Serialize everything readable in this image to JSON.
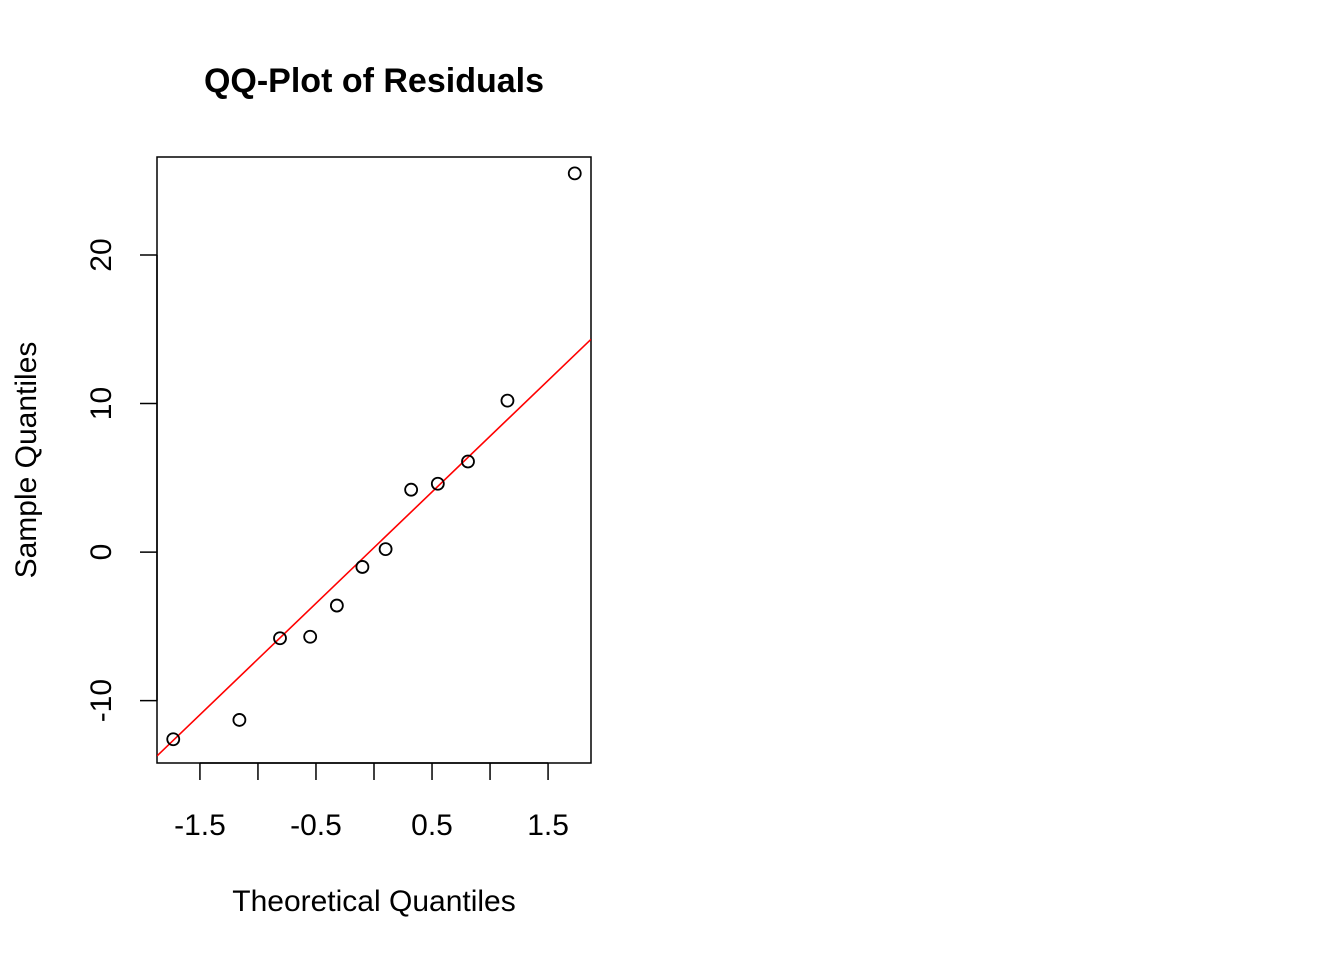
{
  "chart_data": {
    "type": "scatter",
    "title": "QQ-Plot of Residuals",
    "xlabel": "Theoretical Quantiles",
    "ylabel": "Sample Quantiles",
    "xlim": [
      -1.87,
      1.87
    ],
    "ylim": [
      -14.2,
      26.6
    ],
    "x_ticks": [
      -1.5,
      -1.0,
      -0.5,
      0.0,
      0.5,
      1.0,
      1.5
    ],
    "x_tick_labels": [
      {
        "value": -1.5,
        "label": "-1.5"
      },
      {
        "value": -0.5,
        "label": "-0.5"
      },
      {
        "value": 0.5,
        "label": "0.5"
      },
      {
        "value": 1.5,
        "label": "1.5"
      }
    ],
    "y_ticks": [
      -10,
      0,
      10,
      20
    ],
    "y_tick_labels": [
      {
        "value": -10,
        "label": "-10"
      },
      {
        "value": 0,
        "label": "0"
      },
      {
        "value": 10,
        "label": "10"
      },
      {
        "value": 20,
        "label": "20"
      }
    ],
    "grid": false,
    "series": [
      {
        "points": [
          {
            "x": -1.73,
            "y": -12.6
          },
          {
            "x": -1.16,
            "y": -11.3
          },
          {
            "x": -0.81,
            "y": -5.8
          },
          {
            "x": -0.55,
            "y": -5.7
          },
          {
            "x": -0.32,
            "y": -3.6
          },
          {
            "x": -0.1,
            "y": -1.0
          },
          {
            "x": 0.1,
            "y": 0.2
          },
          {
            "x": 0.32,
            "y": 4.2
          },
          {
            "x": 0.55,
            "y": 4.6
          },
          {
            "x": 0.81,
            "y": 6.1
          },
          {
            "x": 1.15,
            "y": 10.2
          },
          {
            "x": 1.73,
            "y": 25.5
          }
        ],
        "marker": "open-circle",
        "color": "#000000"
      }
    ],
    "reference_line": {
      "slope": 7.5,
      "intercept": 0.3,
      "color": "#ff0000"
    }
  }
}
